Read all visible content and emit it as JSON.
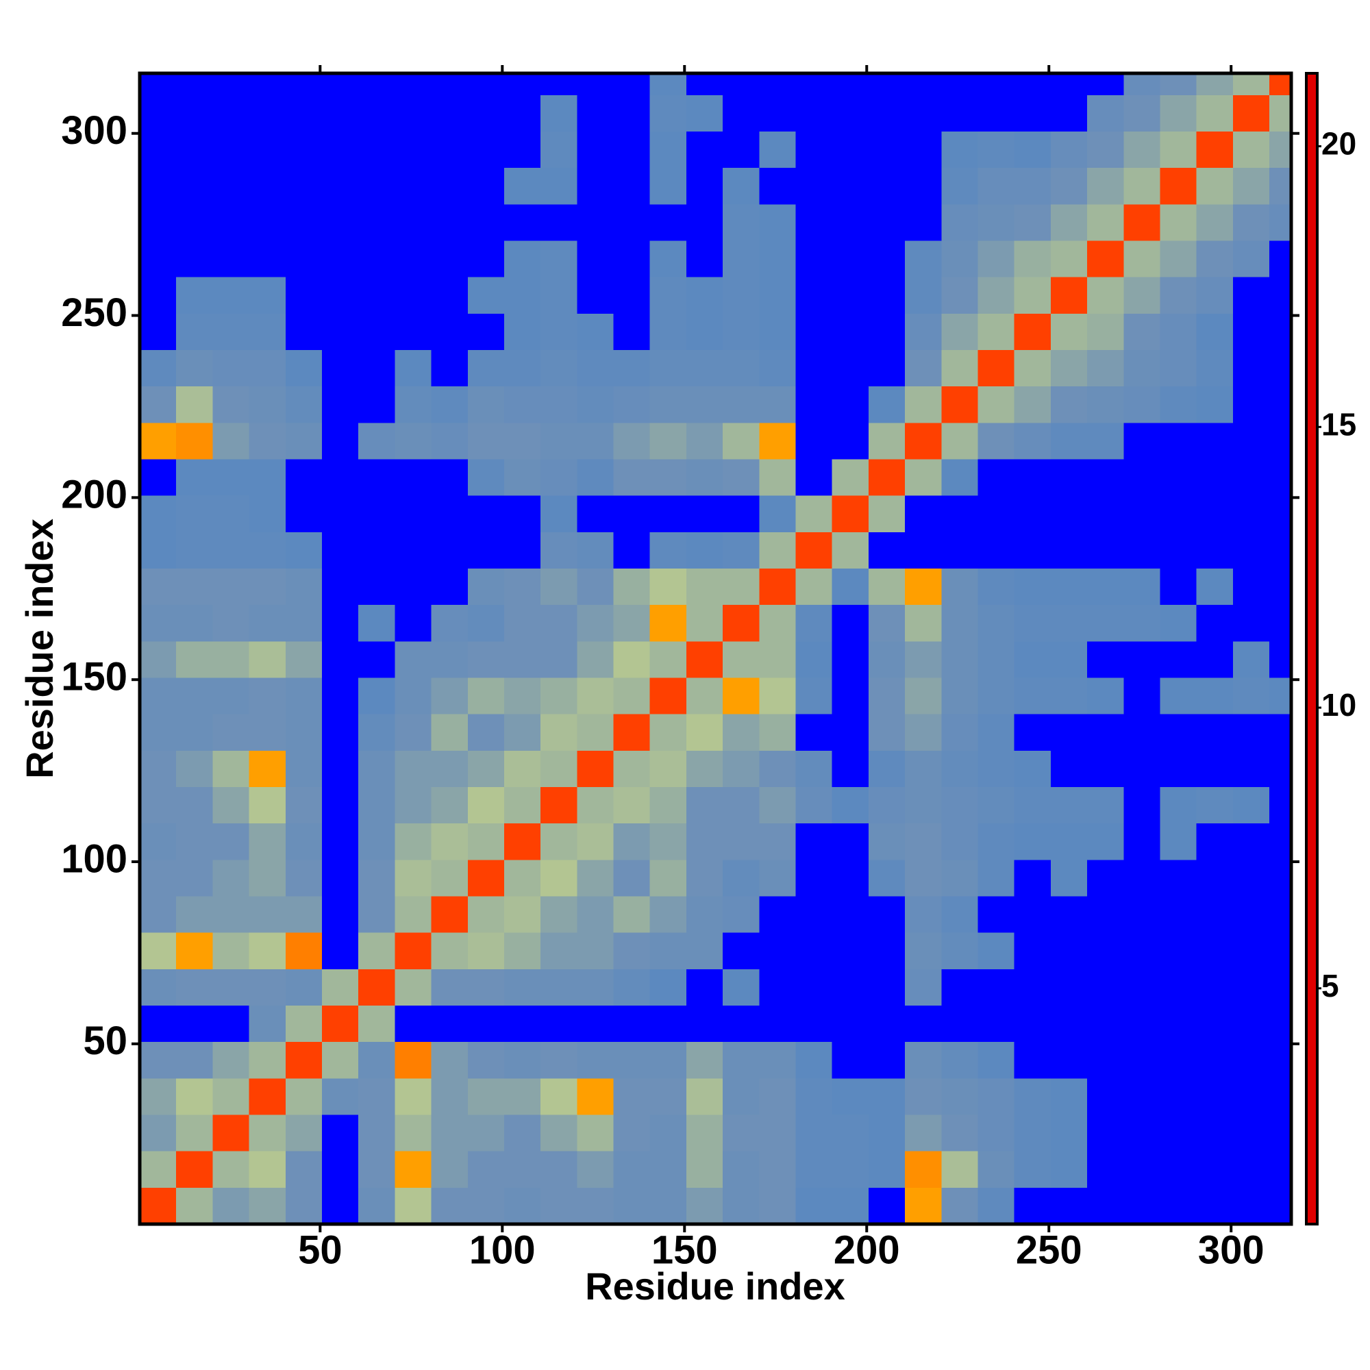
{
  "chart_data": {
    "type": "heatmap",
    "x_label": "Residue index",
    "y_label": "Residue index",
    "xlim": [
      0.5,
      316.5
    ],
    "ylim": [
      0.5,
      316.5
    ],
    "xticks": [
      50,
      100,
      150,
      200,
      250,
      300
    ],
    "yticks": [
      50,
      100,
      150,
      200,
      250,
      300
    ],
    "bin_edges": [
      0.5,
      10.5,
      20.5,
      30.5,
      40.5,
      50.5,
      60.5,
      70.5,
      80.5,
      90.5,
      100.5,
      110.5,
      120.5,
      130.5,
      140.5,
      150.5,
      160.5,
      170.5,
      180.5,
      190.5,
      200.5,
      210.5,
      220.5,
      230.5,
      240.5,
      250.5,
      260.5,
      270.5,
      280.5,
      290.5,
      300.5,
      310.5,
      316.5
    ],
    "matrix": "symmetric",
    "z": [
      [
        4,
        11,
        14,
        13,
        15,
        21,
        16,
        9,
        15,
        15,
        16,
        15,
        15,
        16,
        16,
        14,
        16,
        15,
        20,
        20,
        21,
        8,
        15,
        19,
        21,
        21,
        21,
        21,
        21,
        21,
        21,
        21
      ],
      [
        4,
        11,
        9,
        15,
        21,
        15,
        8,
        14,
        15,
        15,
        15,
        14,
        16,
        16,
        12,
        16,
        15,
        19,
        19,
        20,
        7,
        10,
        16,
        19,
        20,
        21,
        21,
        21,
        21,
        21,
        21
      ],
      [
        4,
        11,
        13,
        21,
        15,
        11,
        14,
        14,
        15,
        13,
        11,
        15,
        16,
        12,
        15,
        15,
        19,
        19,
        20,
        14,
        15,
        17,
        19,
        20,
        21,
        21,
        21,
        21,
        21,
        21
      ],
      [
        4,
        11,
        16,
        15,
        9,
        14,
        13,
        13,
        9,
        8,
        15,
        15,
        10,
        16,
        15,
        19,
        20,
        20,
        15,
        16,
        17,
        19,
        20,
        21,
        21,
        21,
        21,
        21,
        21
      ],
      [
        4,
        11,
        16,
        6,
        14,
        15,
        16,
        15,
        16,
        16,
        16,
        13,
        16,
        16,
        20,
        21,
        21,
        16,
        18,
        20,
        21,
        21,
        21,
        21,
        21,
        21,
        21,
        21
      ],
      [
        4,
        11,
        21,
        21,
        21,
        21,
        21,
        21,
        21,
        21,
        21,
        21,
        21,
        21,
        21,
        21,
        21,
        21,
        21,
        21,
        21,
        21,
        21,
        21,
        21,
        21,
        21
      ],
      [
        4,
        11,
        15,
        15,
        16,
        16,
        16,
        18,
        20,
        21,
        20,
        21,
        21,
        21,
        21,
        17,
        21,
        21,
        21,
        21,
        21,
        21,
        21,
        21,
        21,
        21
      ],
      [
        4,
        11,
        10,
        12,
        14,
        14,
        15,
        16,
        16,
        21,
        21,
        21,
        21,
        21,
        16,
        18,
        20,
        21,
        21,
        21,
        21,
        21,
        21,
        21,
        21
      ],
      [
        4,
        11,
        10,
        13,
        14,
        12,
        14,
        16,
        17,
        21,
        21,
        21,
        21,
        17,
        19,
        21,
        21,
        21,
        21,
        21,
        21,
        21,
        21,
        21
      ],
      [
        4,
        11,
        9,
        13,
        15,
        12,
        15,
        18,
        16,
        21,
        21,
        19,
        15,
        16,
        19,
        21,
        20,
        21,
        21,
        21,
        21,
        21,
        21
      ],
      [
        4,
        11,
        10,
        14,
        13,
        15,
        15,
        15,
        21,
        21,
        16,
        15,
        17,
        19,
        20,
        20,
        20,
        21,
        20,
        21,
        21,
        21
      ],
      [
        4,
        11,
        10,
        12,
        15,
        15,
        14,
        17,
        20,
        17,
        16,
        17,
        18,
        19,
        19,
        19,
        21,
        20,
        19,
        20,
        21
      ],
      [
        4,
        11,
        10,
        13,
        14,
        15,
        18,
        21,
        19,
        16,
        18,
        19,
        20,
        21,
        21,
        21,
        21,
        21,
        21,
        21
      ],
      [
        4,
        11,
        9,
        13,
        12,
        21,
        21,
        15,
        14,
        17,
        19,
        21,
        21,
        21,
        21,
        21,
        21,
        21,
        21
      ],
      [
        4,
        11,
        8,
        9,
        19,
        21,
        15,
        13,
        16,
        18,
        19,
        19,
        20,
        21,
        20,
        20,
        19,
        20
      ],
      [
        4,
        11,
        11,
        20,
        21,
        16,
        14,
        16,
        18,
        20,
        20,
        21,
        21,
        21,
        21,
        20,
        21
      ],
      [
        4,
        11,
        19,
        21,
        15,
        11,
        16,
        18,
        19,
        19,
        19,
        19,
        20,
        21,
        21,
        21
      ],
      [
        4,
        11,
        20,
        11,
        8,
        16,
        19,
        20,
        20,
        20,
        20,
        21,
        20,
        21,
        21
      ],
      [
        4,
        11,
        21,
        21,
        21,
        21,
        21,
        21,
        21,
        21,
        21,
        21,
        21,
        21
      ],
      [
        4,
        11,
        21,
        21,
        21,
        21,
        21,
        21,
        21,
        21,
        21,
        21,
        21
      ],
      [
        4,
        11,
        20,
        21,
        21,
        21,
        21,
        21,
        21,
        21,
        21,
        21
      ],
      [
        4,
        11,
        15,
        17,
        19,
        19,
        21,
        21,
        21,
        21,
        21
      ],
      [
        4,
        11,
        13,
        15,
        16,
        17,
        19,
        20,
        21,
        21
      ],
      [
        4,
        11,
        13,
        14,
        16,
        17,
        19,
        21,
        21
      ],
      [
        4,
        11,
        12,
        15,
        17,
        20,
        21,
        21
      ],
      [
        4,
        11,
        13,
        15,
        17,
        21,
        21
      ],
      [
        4,
        11,
        13,
        15,
        17,
        21
      ],
      [
        4,
        11,
        13,
        15,
        17
      ],
      [
        4,
        11,
        13,
        15
      ],
      [
        4,
        11,
        13
      ],
      [
        4,
        11
      ],
      [
        4
      ]
    ],
    "clim": [
      0.8,
      21.3
    ],
    "colorbar_ticks": [
      5,
      10,
      15,
      20
    ],
    "colorscale": [
      [
        0.8,
        "#e00000"
      ],
      [
        3,
        "#ff2000"
      ],
      [
        6,
        "#ff7f00"
      ],
      [
        8.4,
        "#ffa500"
      ],
      [
        8.5,
        "#b8c890"
      ],
      [
        12,
        "#98b0a0"
      ],
      [
        15,
        "#6e90b8"
      ],
      [
        20.5,
        "#5a88c0"
      ],
      [
        20.6,
        "#0000ff"
      ],
      [
        21.3,
        "#0000ff"
      ]
    ]
  }
}
